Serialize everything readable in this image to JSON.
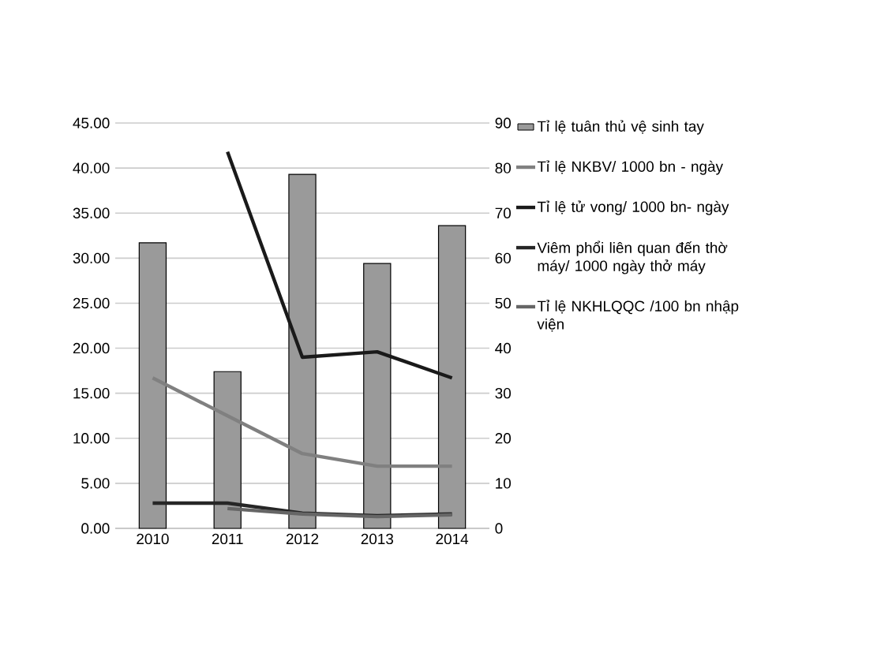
{
  "chart_data": {
    "type": "bar",
    "categories": [
      "2010",
      "2011",
      "2012",
      "2013",
      "2014"
    ],
    "ylim": [
      0,
      45
    ],
    "yticks": [
      {
        "value": 0,
        "label": "0.00"
      },
      {
        "value": 5,
        "label": "5.00"
      },
      {
        "value": 10,
        "label": "10.00"
      },
      {
        "value": 15,
        "label": "15.00"
      },
      {
        "value": 20,
        "label": "20.00"
      },
      {
        "value": 25,
        "label": "25.00"
      },
      {
        "value": 30,
        "label": "30.00"
      },
      {
        "value": 35,
        "label": "35.00"
      },
      {
        "value": 40,
        "label": "40.00"
      },
      {
        "value": 45,
        "label": "45.00"
      }
    ],
    "y2lim": [
      0,
      90
    ],
    "y2ticks": [
      0,
      10,
      20,
      30,
      40,
      50,
      60,
      70,
      80,
      90
    ],
    "grid": "y",
    "legend": "right",
    "marker": "none",
    "series": [
      {
        "name": "Tỉ lệ tuân thủ vệ sinh tay",
        "axis": "y2",
        "color": "#9a9a9a",
        "values": [
          63.4,
          34.8,
          78.6,
          58.8,
          67.2
        ]
      },
      {
        "name": "Tỉ lệ NKBV/ 1000 bn - ngày",
        "type": "line",
        "color": "#808080",
        "values": [
          16.7,
          12.5,
          8.3,
          6.9,
          6.9
        ]
      },
      {
        "name": "Tỉ lệ tử vong/ 1000 bn- ngày",
        "type": "line",
        "color": "#1a1a1a",
        "values": [
          null,
          41.8,
          19.0,
          19.6,
          16.7
        ]
      },
      {
        "name": "Viêm phổi liên quan đến thờ máy/ 1000 ngày thở máy",
        "type": "line",
        "color": "#262626",
        "values": [
          2.8,
          2.8,
          1.7,
          1.4,
          1.6
        ]
      },
      {
        "name": "Tỉ lệ NKHLQQC /100 bn nhập viện",
        "type": "line",
        "color": "#666666",
        "values": [
          null,
          2.2,
          1.6,
          1.3,
          1.5
        ]
      }
    ]
  }
}
